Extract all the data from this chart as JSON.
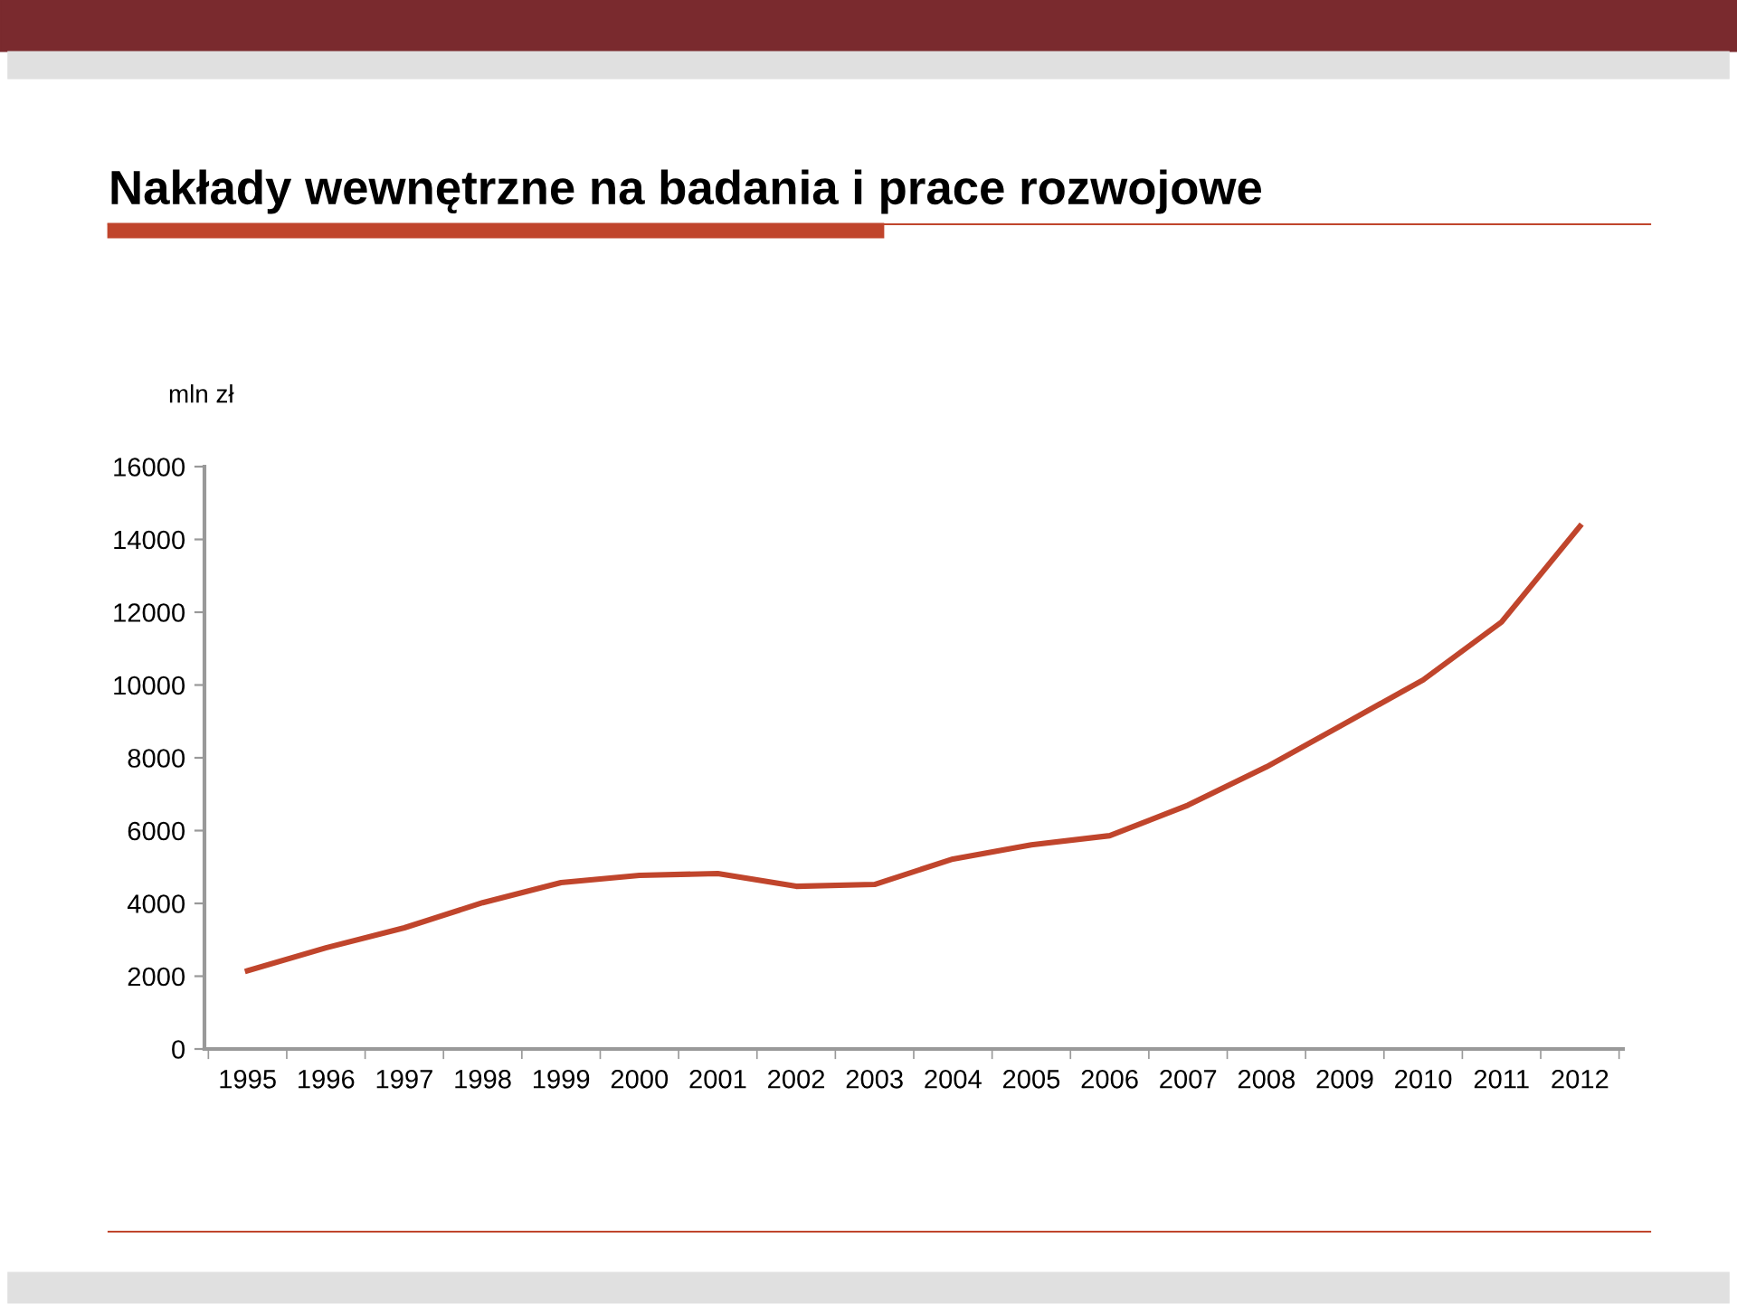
{
  "chart_data": {
    "type": "line",
    "title": "Nakłady wewnętrzne na badania i prace rozwojowe",
    "ylabel": "mln zł",
    "categories": [
      "1995",
      "1996",
      "1997",
      "1998",
      "1999",
      "2000",
      "2001",
      "2002",
      "2003",
      "2004",
      "2005",
      "2006",
      "2007",
      "2008",
      "2009",
      "2010",
      "2011",
      "2012"
    ],
    "series": [
      {
        "color": "#c0452c",
        "values": [
          2150,
          2780,
          3330,
          4020,
          4570,
          4770,
          4820,
          4470,
          4520,
          5220,
          5610,
          5860,
          6700,
          7750,
          8940,
          10140,
          11730,
          14360
        ]
      }
    ],
    "ylim": [
      0,
      16000
    ],
    "yticks": [
      0,
      2000,
      4000,
      6000,
      8000,
      10000,
      12000,
      14000,
      16000
    ],
    "grid": false,
    "marker": "none",
    "line_style": "solid"
  }
}
